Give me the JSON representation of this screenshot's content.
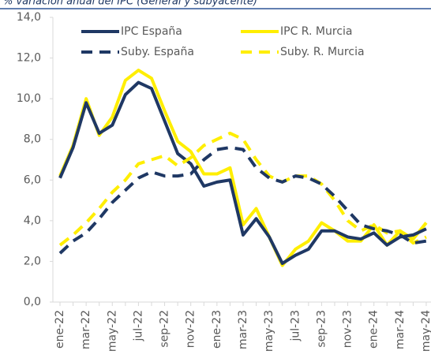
{
  "chart_data": {
    "type": "line",
    "title": "% variación anual del IPC (General y subyacente)",
    "categories": [
      "ene-22",
      null,
      "mar-22",
      null,
      "may-22",
      null,
      "jul-22",
      null,
      "sep-22",
      null,
      "nov-22",
      null,
      "ene-23",
      null,
      "mar-23",
      null,
      "may-23",
      null,
      "jul-23",
      null,
      "sep-23",
      null,
      "nov-23",
      null,
      "ene-24",
      null,
      "mar-24",
      null,
      "may-24"
    ],
    "series": [
      {
        "name": "IPC España",
        "color": "#1f3864",
        "dashed": false,
        "values": [
          6.1,
          7.6,
          9.8,
          8.3,
          8.7,
          10.2,
          10.8,
          10.5,
          8.9,
          7.3,
          6.8,
          5.7,
          5.9,
          6.0,
          3.3,
          4.1,
          3.2,
          1.9,
          2.3,
          2.6,
          3.5,
          3.5,
          3.2,
          3.1,
          3.4,
          2.8,
          3.2,
          3.3,
          3.6
        ]
      },
      {
        "name": "IPC R. Murcia",
        "color": "#ffee00",
        "dashed": false,
        "values": [
          6.2,
          7.7,
          10.0,
          8.2,
          9.1,
          10.9,
          11.4,
          11.0,
          9.4,
          7.9,
          7.4,
          6.3,
          6.3,
          6.6,
          3.8,
          4.6,
          3.2,
          1.8,
          2.6,
          3.0,
          3.9,
          3.5,
          3.0,
          3.0,
          3.8,
          2.8,
          3.5,
          3.1,
          3.9
        ]
      },
      {
        "name": "Suby. España",
        "color": "#1f3864",
        "dashed": true,
        "values": [
          2.4,
          3.0,
          3.4,
          4.1,
          4.9,
          5.5,
          6.1,
          6.4,
          6.2,
          6.2,
          6.3,
          7.0,
          7.5,
          7.6,
          7.5,
          6.6,
          6.1,
          5.9,
          6.2,
          6.1,
          5.8,
          5.2,
          4.5,
          3.8,
          3.6,
          3.5,
          3.3,
          2.9,
          3.0
        ]
      },
      {
        "name": "Suby. R. Murcia",
        "color": "#ffee00",
        "dashed": true,
        "values": [
          2.8,
          3.3,
          3.9,
          4.6,
          5.4,
          6.0,
          6.8,
          7.0,
          7.2,
          6.7,
          7.1,
          7.7,
          8.0,
          8.3,
          8.0,
          7.0,
          6.2,
          5.9,
          6.2,
          6.2,
          5.8,
          5.0,
          4.0,
          3.5,
          3.8,
          3.4,
          3.5,
          2.9,
          3.2
        ]
      }
    ],
    "ylim": [
      0,
      14
    ],
    "yticks": [
      {
        "value": 0,
        "label": "0,0"
      },
      {
        "value": 2,
        "label": "2,0"
      },
      {
        "value": 4,
        "label": "4,0"
      },
      {
        "value": 6,
        "label": "6,0"
      },
      {
        "value": 8,
        "label": "8,0"
      },
      {
        "value": 10,
        "label": "10,0"
      },
      {
        "value": 12,
        "label": "12,0"
      },
      {
        "value": 14,
        "label": "14,0"
      }
    ],
    "grid": false
  }
}
